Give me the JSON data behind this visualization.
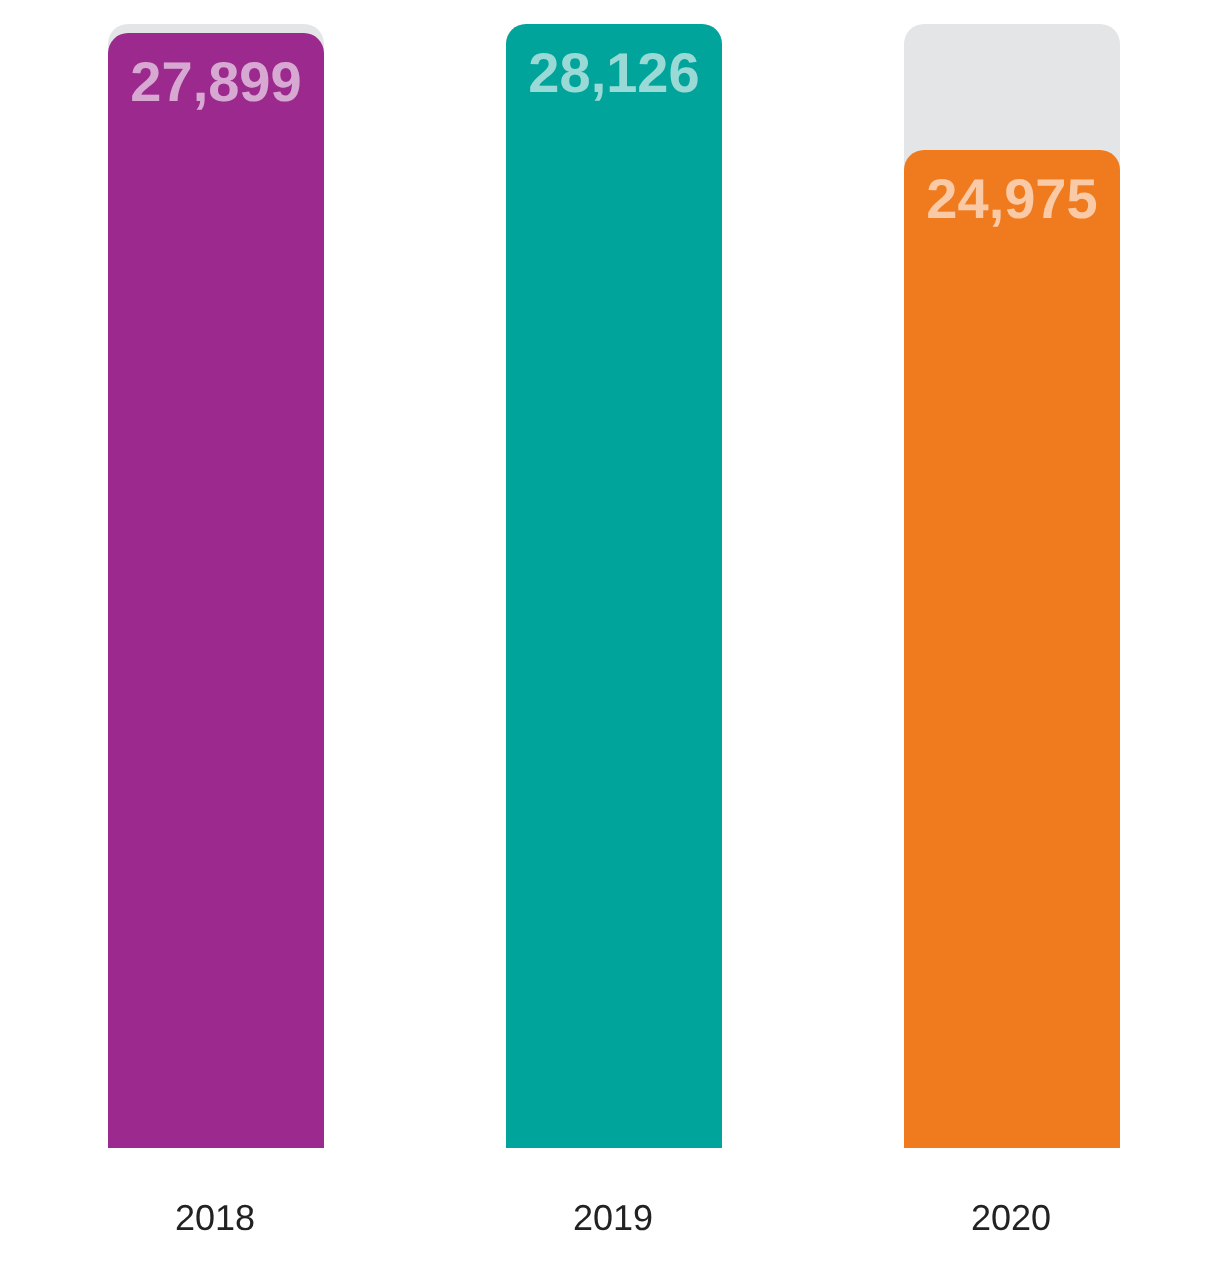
{
  "chart_data": {
    "type": "bar",
    "categories": [
      "2018",
      "2019",
      "2020"
    ],
    "values": [
      27899,
      28126,
      24975
    ],
    "colors": [
      "#9c2a8e",
      "#00a49a",
      "#f07a1e"
    ],
    "value_labels": [
      "27,899",
      "28,126",
      "24,975"
    ],
    "grid": false,
    "legend": false
  }
}
